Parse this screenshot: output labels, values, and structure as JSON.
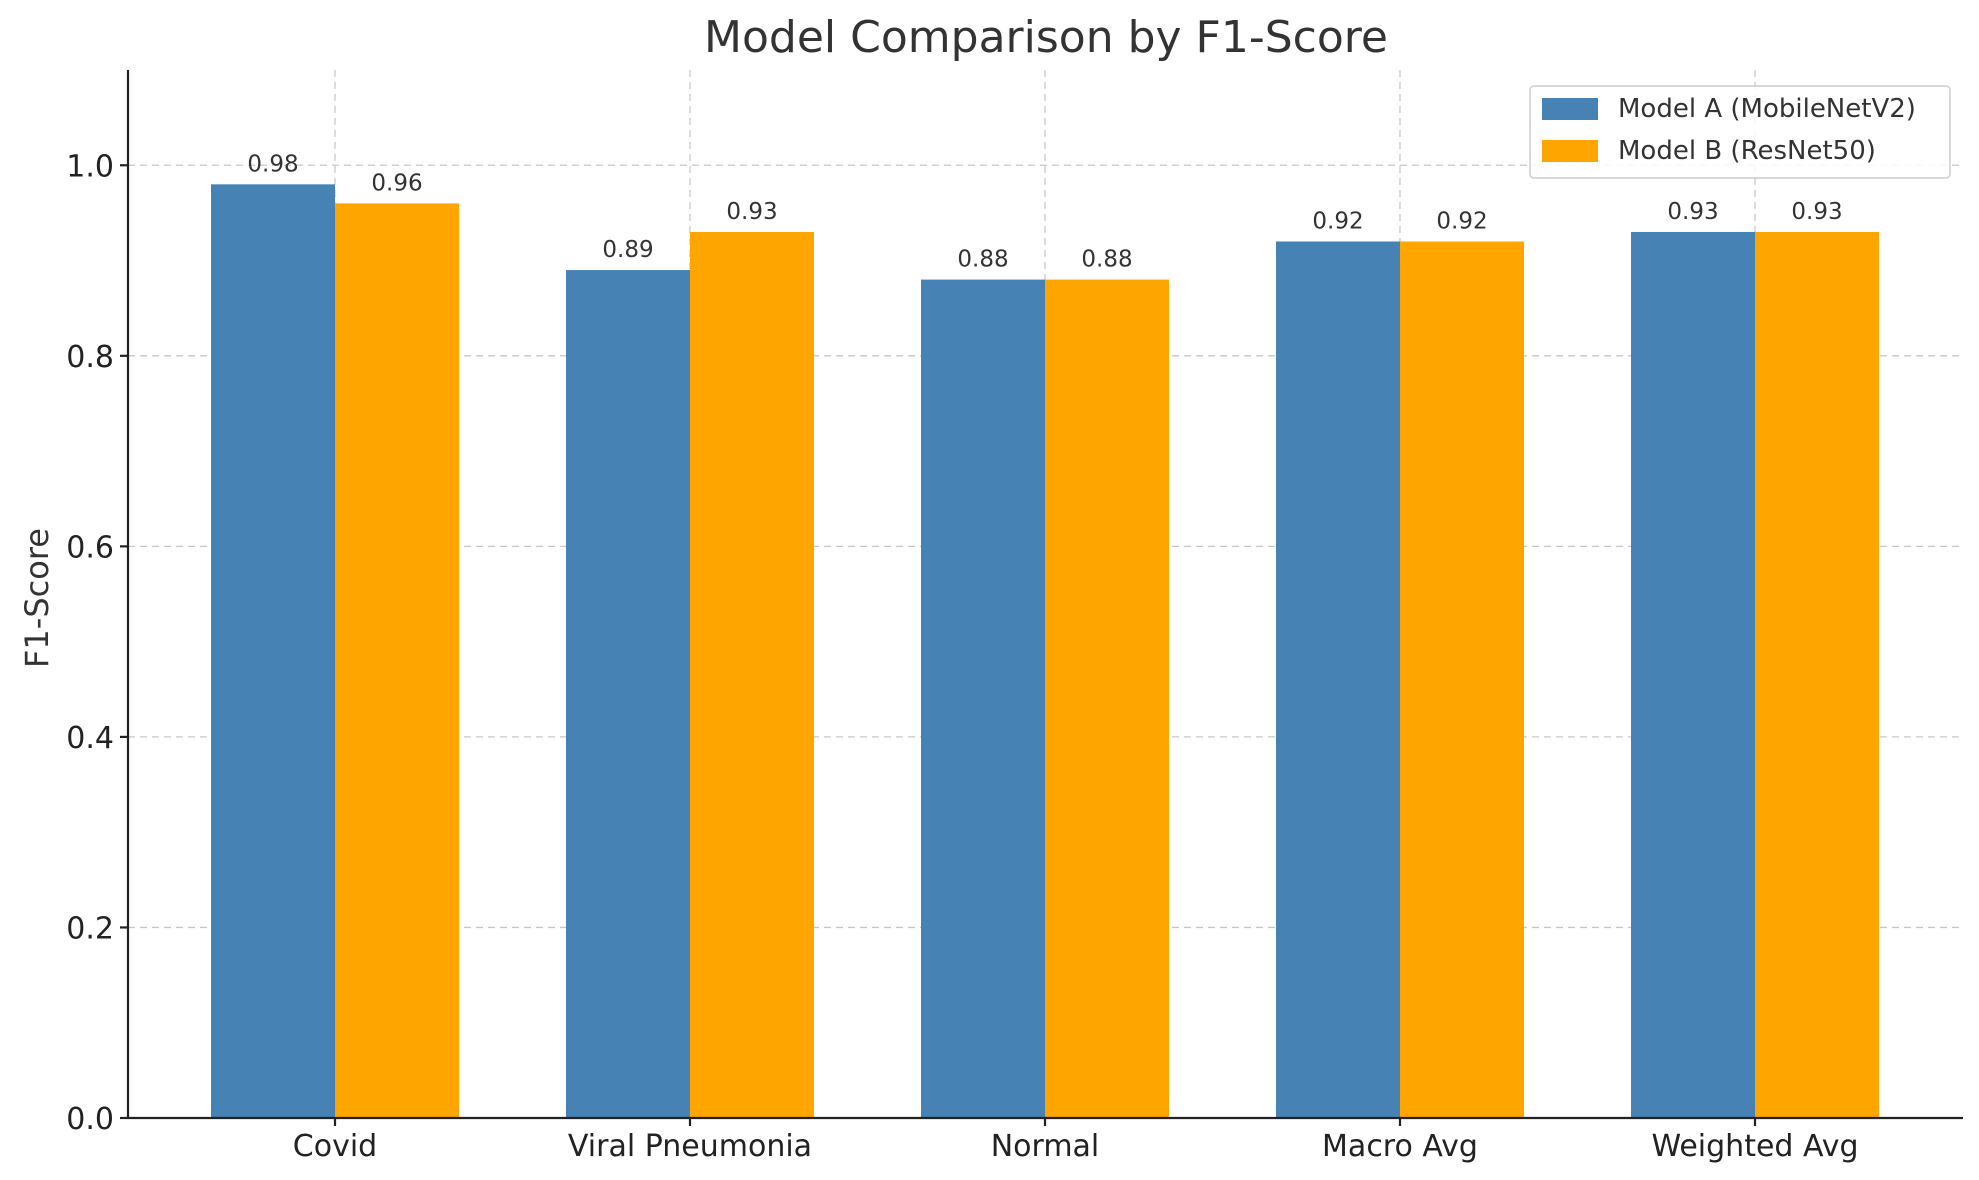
{
  "chart_data": {
    "type": "bar",
    "title": "Model Comparison by F1-Score",
    "xlabel": "",
    "ylabel": "F1-Score",
    "categories": [
      "Covid",
      "Viral Pneumonia",
      "Normal",
      "Macro Avg",
      "Weighted Avg"
    ],
    "series": [
      {
        "name": "Model A (MobileNetV2)",
        "color": "#4682b4",
        "values": [
          0.98,
          0.89,
          0.88,
          0.92,
          0.93
        ]
      },
      {
        "name": "Model B (ResNet50)",
        "color": "#ffa500",
        "values": [
          0.96,
          0.93,
          0.88,
          0.92,
          0.93
        ]
      }
    ],
    "ylim": [
      0,
      1.1
    ],
    "yticks": [
      0.0,
      0.2,
      0.4,
      0.6,
      0.8,
      1.0
    ],
    "ytick_labels": [
      "0.0",
      "0.2",
      "0.4",
      "0.6",
      "0.8",
      "1.0"
    ],
    "grid": true,
    "legend_position": "top-right"
  }
}
